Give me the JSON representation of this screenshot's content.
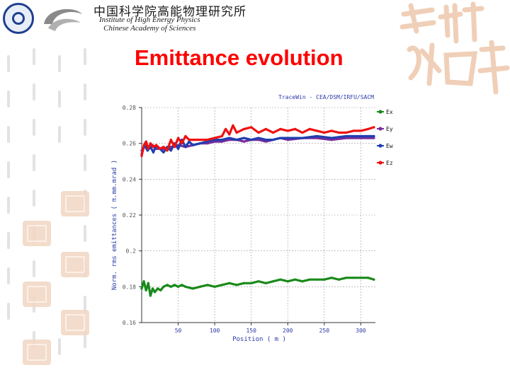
{
  "header": {
    "institute_cn": "中国科学院高能物理研究所",
    "institute_en_line1": "Institute of High Energy Physics",
    "institute_en_line2": "Chinese Academy of Sciences"
  },
  "title": "Emittance evolution",
  "colors": {
    "title": "#ff0000",
    "ex": "#1a8a1a",
    "ey": "#7b2b9e",
    "ew": "#1f3fb0",
    "ez": "#ee1111",
    "seal": "#f2d7c3"
  },
  "chart_data": {
    "type": "line",
    "title": "TraceWin - CEA/DSM/IRFU/SACM",
    "xlabel": "Position ( m )",
    "ylabel": "Norm. rms emittances ( π.mm.mrad )",
    "xlim": [
      0,
      320
    ],
    "ylim": [
      0.16,
      0.28
    ],
    "xticks": [
      50,
      100,
      150,
      200,
      250,
      300
    ],
    "yticks": [
      0.16,
      0.18,
      0.2,
      0.22,
      0.24,
      0.26,
      0.28
    ],
    "ytick_labels": [
      "0.16",
      "0.18",
      "0.2",
      "0.22",
      "0.24",
      "0.26",
      "0.28"
    ],
    "grid": true,
    "legend_position": "right",
    "series": [
      {
        "name": "Ex",
        "color": "#1a8a1a",
        "x": [
          0,
          3,
          6,
          9,
          12,
          15,
          18,
          22,
          26,
          30,
          35,
          40,
          45,
          50,
          55,
          60,
          70,
          80,
          90,
          100,
          110,
          120,
          130,
          140,
          150,
          160,
          170,
          180,
          190,
          200,
          210,
          220,
          230,
          240,
          250,
          260,
          270,
          280,
          290,
          300,
          310,
          318
        ],
        "y": [
          0.179,
          0.183,
          0.178,
          0.182,
          0.175,
          0.179,
          0.177,
          0.179,
          0.178,
          0.18,
          0.181,
          0.18,
          0.181,
          0.18,
          0.181,
          0.18,
          0.179,
          0.18,
          0.181,
          0.18,
          0.181,
          0.182,
          0.181,
          0.182,
          0.182,
          0.183,
          0.182,
          0.183,
          0.184,
          0.183,
          0.184,
          0.183,
          0.184,
          0.184,
          0.184,
          0.185,
          0.184,
          0.185,
          0.185,
          0.185,
          0.185,
          0.184
        ]
      },
      {
        "name": "Ey",
        "color": "#7b2b9e",
        "x": [
          0,
          5,
          10,
          15,
          20,
          30,
          40,
          50,
          60,
          70,
          80,
          90,
          100,
          110,
          120,
          130,
          140,
          150,
          160,
          170,
          180,
          190,
          200,
          220,
          240,
          260,
          280,
          300,
          318
        ],
        "y": [
          0.256,
          0.259,
          0.257,
          0.259,
          0.257,
          0.257,
          0.258,
          0.259,
          0.258,
          0.259,
          0.26,
          0.26,
          0.261,
          0.261,
          0.262,
          0.262,
          0.261,
          0.262,
          0.262,
          0.261,
          0.262,
          0.263,
          0.262,
          0.263,
          0.263,
          0.262,
          0.263,
          0.263,
          0.263
        ]
      },
      {
        "name": "Ew",
        "color": "#1f3fb0",
        "x": [
          0,
          4,
          8,
          12,
          16,
          20,
          25,
          30,
          35,
          40,
          45,
          50,
          55,
          60,
          65,
          70,
          80,
          90,
          100,
          110,
          120,
          130,
          140,
          150,
          160,
          170,
          180,
          190,
          200,
          220,
          240,
          260,
          280,
          300,
          318
        ],
        "y": [
          0.254,
          0.259,
          0.256,
          0.258,
          0.255,
          0.259,
          0.257,
          0.255,
          0.258,
          0.256,
          0.26,
          0.257,
          0.262,
          0.258,
          0.261,
          0.259,
          0.26,
          0.261,
          0.262,
          0.262,
          0.263,
          0.262,
          0.263,
          0.262,
          0.263,
          0.262,
          0.262,
          0.263,
          0.263,
          0.263,
          0.264,
          0.263,
          0.264,
          0.264,
          0.264
        ]
      },
      {
        "name": "Ez",
        "color": "#ee1111",
        "x": [
          0,
          3,
          6,
          9,
          12,
          16,
          20,
          25,
          30,
          35,
          40,
          45,
          50,
          55,
          60,
          65,
          70,
          80,
          90,
          100,
          110,
          115,
          120,
          125,
          130,
          140,
          150,
          160,
          170,
          180,
          190,
          200,
          210,
          220,
          230,
          240,
          250,
          260,
          270,
          280,
          290,
          300,
          310,
          318
        ],
        "y": [
          0.253,
          0.259,
          0.261,
          0.257,
          0.26,
          0.258,
          0.259,
          0.257,
          0.258,
          0.256,
          0.262,
          0.258,
          0.263,
          0.26,
          0.264,
          0.262,
          0.262,
          0.262,
          0.262,
          0.263,
          0.264,
          0.268,
          0.265,
          0.27,
          0.266,
          0.268,
          0.269,
          0.266,
          0.268,
          0.266,
          0.268,
          0.267,
          0.268,
          0.266,
          0.268,
          0.267,
          0.266,
          0.267,
          0.266,
          0.266,
          0.267,
          0.267,
          0.268,
          0.269
        ]
      }
    ]
  }
}
